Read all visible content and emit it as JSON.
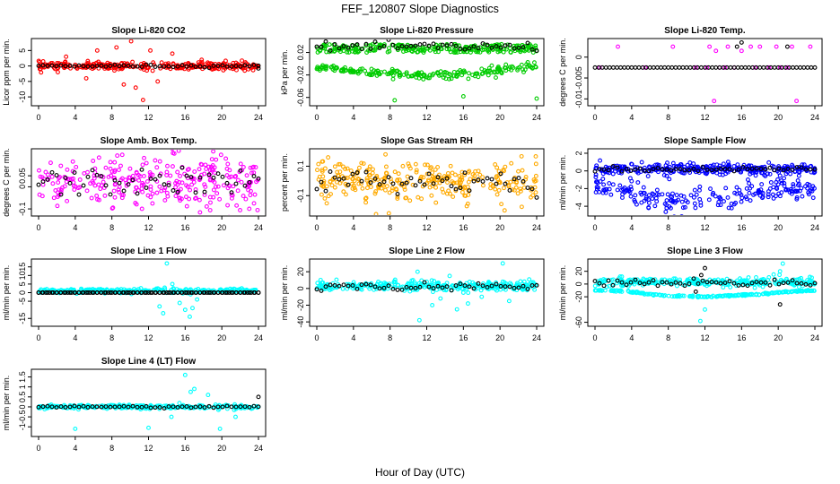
{
  "figure": {
    "title": "FEF_120807  Slope Diagnostics",
    "xlabel": "Hour of Day (UTC)"
  },
  "chart_data": [
    {
      "type": "scatter",
      "title": "Slope Li-820 CO2",
      "ylabel": "Licor ppm per min.",
      "xlim": [
        0,
        24
      ],
      "xticks": [
        0,
        4,
        8,
        12,
        16,
        20,
        24
      ],
      "ylim": [
        -12,
        8
      ],
      "yticks": [
        -10,
        -5,
        0,
        5
      ],
      "grid": false,
      "series": [
        {
          "color": "#ff0000",
          "cx": 0.0,
          "s": 0.6,
          "x": [
            0.5,
            2.1,
            3.0,
            5.2,
            6.4,
            8.5,
            9.3,
            10.1,
            10.6,
            11.4,
            12.2,
            13.0,
            14.6,
            17.8,
            22.5
          ],
          "y": [
            1.5,
            -2,
            3,
            -4,
            5,
            6,
            -6,
            8,
            -7,
            -11,
            5,
            -5,
            4,
            2,
            -1.5
          ]
        },
        {
          "color": "#000000",
          "cx": 0.0,
          "s": 0.2,
          "x": [
            24
          ],
          "y": [
            -0.8
          ]
        }
      ]
    },
    {
      "type": "scatter",
      "title": "Slope Li-820 Pressure",
      "ylabel": "kPa per min.",
      "xlim": [
        0,
        24
      ],
      "xticks": [
        0,
        4,
        8,
        12,
        16,
        20,
        24
      ],
      "ylim": [
        -0.07,
        0.04
      ],
      "yticks": [
        -0.06,
        -0.02,
        0.02
      ],
      "grid": false,
      "series": [
        {
          "color": "#00cc00",
          "band": [
            [
              0,
              0.02,
              0.035
            ],
            [
              24,
              0.02,
              0.035
            ]
          ],
          "x": [
            1,
            4,
            6,
            9,
            11,
            14,
            17,
            20,
            23,
            8.5,
            16,
            24
          ],
          "y": [
            -0.01,
            -0.015,
            -0.02,
            -0.02,
            -0.02,
            -0.015,
            -0.02,
            -0.01,
            -0.005,
            -0.065,
            -0.058,
            -0.062
          ]
        },
        {
          "color": "#000000",
          "cx": 0.03,
          "s": 0.004,
          "x": [],
          "y": []
        }
      ]
    },
    {
      "type": "scatter",
      "title": "Slope Li-820 Temp.",
      "ylabel": "degrees C per min.",
      "xlim": [
        0,
        24
      ],
      "xticks": [
        0,
        4,
        8,
        12,
        16,
        20,
        24
      ],
      "ylim": [
        -0.011,
        0.0038
      ],
      "yticks": [
        -0.01,
        -0.005,
        0.0
      ],
      "grid": false,
      "series": [
        {
          "color": "#ff00ff",
          "x": [
            0.5,
            2.5,
            5.5,
            8.5,
            11.0,
            12.2,
            12.5,
            13.0,
            13.2,
            13.6,
            14.2,
            14.5,
            15.2,
            16.0,
            17.0,
            17.5,
            18.0,
            19.0,
            19.8,
            20.2,
            21.0,
            21.5,
            22.0,
            23.5
          ],
          "y": [
            -0.0025,
            0.0025,
            -0.0025,
            0.0025,
            -0.0025,
            -0.0025,
            0.0025,
            -0.0105,
            0.0015,
            -0.0025,
            -0.0025,
            0.0025,
            -0.0025,
            0.0015,
            0.0025,
            -0.0025,
            0.0025,
            -0.0025,
            0.0025,
            -0.0025,
            -0.0025,
            0.0025,
            -0.0105,
            0.0025
          ]
        },
        {
          "color": "#000000",
          "x": [
            16.0,
            15.5,
            21.0
          ],
          "y": [
            0.0035,
            0.0025,
            0.0025
          ]
        }
      ]
    },
    {
      "type": "scatter",
      "title": "Slope Amb. Box Temp.",
      "ylabel": "degrees C per min.",
      "xlim": [
        0,
        24
      ],
      "xticks": [
        0,
        4,
        8,
        12,
        16,
        20,
        24
      ],
      "ylim": [
        -0.12,
        0.16
      ],
      "yticks": [
        -0.1,
        0.0,
        0.05
      ],
      "grid": false,
      "series": [
        {
          "color": "#ff00ff",
          "cx": 0.02,
          "s": 0.06,
          "x": [],
          "y": []
        },
        {
          "color": "#000000",
          "cx": 0.02,
          "s": 0.03,
          "x": [],
          "y": []
        }
      ]
    },
    {
      "type": "scatter",
      "title": "Slope Gas Stream RH",
      "ylabel": "percent per min.",
      "xlim": [
        0,
        24
      ],
      "xticks": [
        0,
        4,
        8,
        12,
        16,
        20,
        24
      ],
      "ylim": [
        -0.22,
        0.2
      ],
      "yticks": [
        -0.1,
        0.1
      ],
      "grid": false,
      "series": [
        {
          "color": "#ffaa00",
          "cx": 0.0,
          "s": 0.07,
          "x": [
            7.5,
            20.5
          ],
          "y": [
            0.18,
            -0.2
          ]
        },
        {
          "color": "#000000",
          "cx": 0.0,
          "s": 0.04,
          "x": [],
          "y": []
        }
      ]
    },
    {
      "type": "scatter",
      "title": "Slope Sample Flow",
      "ylabel": "ml/min per min.",
      "xlim": [
        0,
        24
      ],
      "xticks": [
        0,
        4,
        8,
        12,
        16,
        20,
        24
      ],
      "ylim": [
        -4.8,
        2.2
      ],
      "yticks": [
        -4,
        -2,
        0,
        2
      ],
      "grid": false,
      "series": [
        {
          "color": "#0000ff",
          "cx": 0.2,
          "s": 0.3,
          "x": [],
          "y": []
        },
        {
          "color": "#0000ff",
          "curve": [
            [
              0,
              -1.6
            ],
            [
              2,
              -2.0
            ],
            [
              5,
              -2.6
            ],
            [
              7,
              -3.2
            ],
            [
              8.5,
              -3.4
            ],
            [
              10,
              -3.2
            ],
            [
              11,
              -2.7
            ],
            [
              12,
              -3.2
            ],
            [
              14,
              -3.0
            ],
            [
              16,
              -2.7
            ],
            [
              18,
              -2.3
            ],
            [
              20,
              -1.9
            ],
            [
              22,
              -2.1
            ],
            [
              24,
              -2.1
            ]
          ],
          "x": [],
          "y": []
        },
        {
          "color": "#000000",
          "cx": 0.2,
          "s": 0.15,
          "x": [],
          "y": []
        }
      ]
    },
    {
      "type": "scatter",
      "title": "Slope Line 1 Flow",
      "ylabel": "ml/min per min.",
      "xlim": [
        0,
        24
      ],
      "xticks": [
        0,
        4,
        8,
        12,
        16,
        20,
        24
      ],
      "ylim": [
        -18,
        18
      ],
      "yticks": [
        -15,
        -5,
        0,
        5,
        10,
        15
      ],
      "grid": false,
      "series": [
        {
          "color": "#00ffff",
          "cx": 1.0,
          "s": 0.6,
          "x": [
            13.2,
            13.6,
            14.0,
            14.6,
            15.4,
            16.0,
            16.5,
            16.8,
            17.3
          ],
          "y": [
            -8,
            -12,
            17,
            5,
            -6,
            -10,
            -14,
            -9,
            -4
          ]
        },
        {
          "color": "#000000",
          "cx": 0.0,
          "s": 0.0,
          "x": [],
          "y": []
        }
      ]
    },
    {
      "type": "scatter",
      "title": "Slope Line 2 Flow",
      "ylabel": "ml/min per min.",
      "xlim": [
        0,
        24
      ],
      "xticks": [
        0,
        4,
        8,
        12,
        16,
        20,
        24
      ],
      "ylim": [
        -42,
        32
      ],
      "yticks": [
        -40,
        -20,
        0,
        20
      ],
      "grid": false,
      "series": [
        {
          "color": "#00ffff",
          "cx": 3,
          "s": 3,
          "x": [
            10.5,
            11.0,
            11.2,
            12.0,
            12.6,
            13.5,
            14.5,
            15.3,
            16.0,
            16.5,
            17.2,
            18.0,
            20.3,
            21.0
          ],
          "y": [
            10,
            20,
            -38,
            8,
            -20,
            -12,
            15,
            -25,
            -5,
            -18,
            5,
            -10,
            30,
            -15
          ]
        },
        {
          "color": "#000000",
          "cx": 2,
          "s": 2,
          "x": [],
          "y": []
        }
      ]
    },
    {
      "type": "scatter",
      "title": "Slope Line 3 Flow",
      "ylabel": "ml/min per min.",
      "xlim": [
        0,
        24
      ],
      "xticks": [
        0,
        4,
        8,
        12,
        16,
        20,
        24
      ],
      "ylim": [
        -62,
        35
      ],
      "yticks": [
        -60,
        -20,
        0,
        20
      ],
      "grid": false,
      "series": [
        {
          "color": "#00ffff",
          "cx": 3,
          "s": 3,
          "x": [
            11.5,
            12.0,
            20.5,
            20.2,
            19.5
          ],
          "y": [
            -58,
            -40,
            32,
            20,
            15
          ]
        },
        {
          "color": "#00ffff",
          "curve": [
            [
              0,
              -10
            ],
            [
              3,
              -11
            ],
            [
              6,
              -16
            ],
            [
              8,
              -18
            ],
            [
              10,
              -19
            ],
            [
              12,
              -20
            ],
            [
              15,
              -18
            ],
            [
              18,
              -16
            ],
            [
              21,
              -12
            ],
            [
              24,
              -10
            ]
          ],
          "x": [],
          "y": []
        },
        {
          "color": "#000000",
          "cx": 2,
          "s": 3,
          "x": [
            12.0,
            11.6,
            20.2,
            11.0
          ],
          "y": [
            25,
            14,
            -32,
            -12
          ]
        }
      ]
    },
    {
      "type": "scatter",
      "title": "Slope Line 4 (LT) Flow",
      "ylabel": "ml/min per min.",
      "xlim": [
        0,
        24
      ],
      "xticks": [
        0,
        4,
        8,
        12,
        16,
        20,
        24
      ],
      "ylim": [
        -1.35,
        1.75
      ],
      "yticks": [
        -1.0,
        -0.5,
        0.0,
        0.5,
        1.0,
        1.5
      ],
      "grid": false,
      "series": [
        {
          "color": "#00ffff",
          "cx": 0.0,
          "s": 0.05,
          "x": [
            4.0,
            12.0,
            16.0,
            16.6,
            17.0,
            19.8,
            14.5,
            18.5,
            21.5
          ],
          "y": [
            -1.1,
            -1.05,
            1.6,
            0.75,
            0.9,
            -1.1,
            -0.5,
            0.6,
            -0.5
          ]
        },
        {
          "color": "#000000",
          "cx": 0.0,
          "s": 0.03,
          "x": [
            24.0
          ],
          "y": [
            0.5
          ]
        }
      ]
    }
  ]
}
